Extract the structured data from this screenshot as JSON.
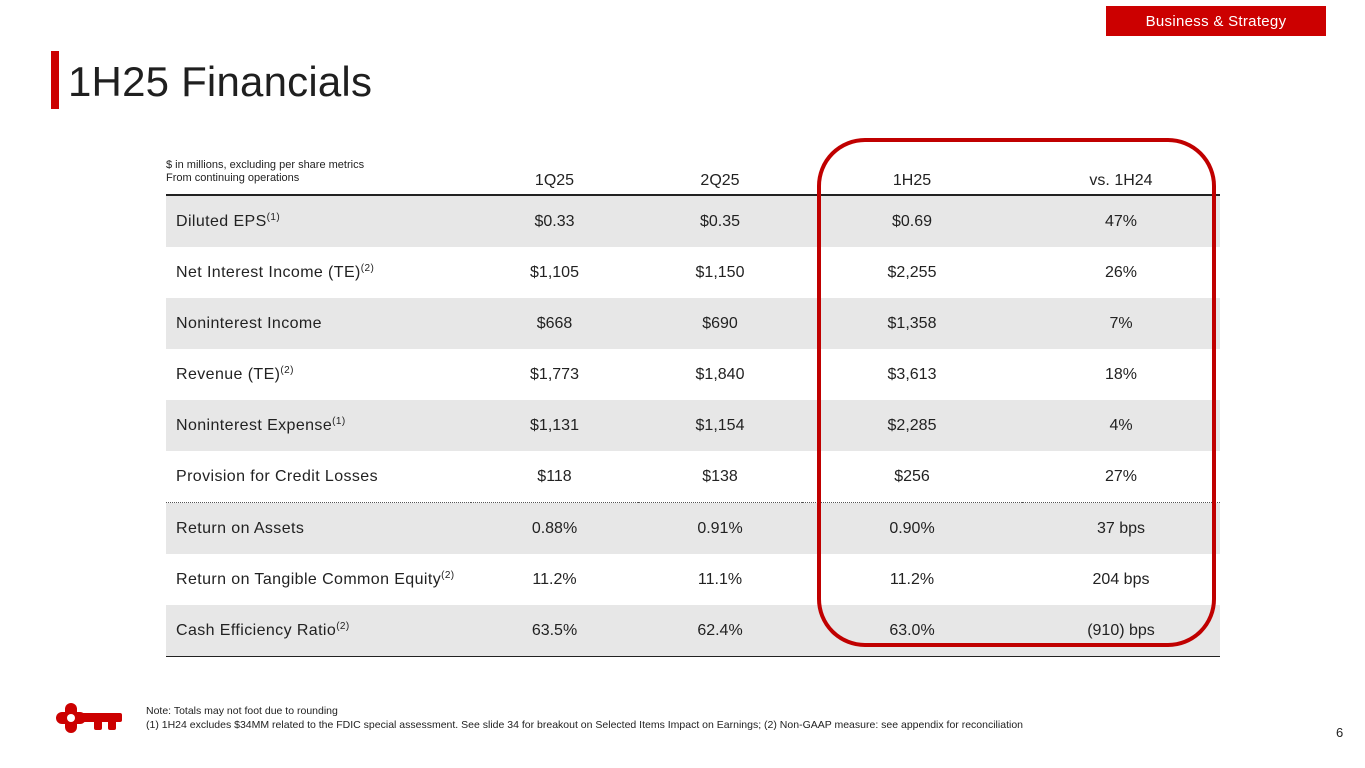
{
  "badge": "Business & Strategy",
  "title": "1H25 Financials",
  "table": {
    "note_line1": "$ in millions, excluding per share metrics",
    "note_line2": "From continuing operations",
    "columns": [
      "1Q25",
      "2Q25",
      "1H25",
      "vs. 1H24"
    ],
    "rows": [
      {
        "label": "Diluted EPS",
        "sup": "(1)",
        "values": [
          "$0.33",
          "$0.35",
          "$0.69",
          "47%"
        ]
      },
      {
        "label": "Net Interest Income (TE)",
        "sup": "(2)",
        "values": [
          "$1,105",
          "$1,150",
          "$2,255",
          "26%"
        ]
      },
      {
        "label": "Noninterest Income",
        "sup": "",
        "values": [
          "$668",
          "$690",
          "$1,358",
          "7%"
        ]
      },
      {
        "label": "Revenue (TE)",
        "sup": "(2)",
        "values": [
          "$1,773",
          "$1,840",
          "$3,613",
          "18%"
        ]
      },
      {
        "label": "Noninterest Expense",
        "sup": "(1)",
        "values": [
          "$1,131",
          "$1,154",
          "$2,285",
          "4%"
        ]
      },
      {
        "label": "Provision for Credit Losses",
        "sup": "",
        "values": [
          "$118",
          "$138",
          "$256",
          "27%"
        ]
      },
      {
        "label": "Return on Assets",
        "sup": "",
        "values": [
          "0.88%",
          "0.91%",
          "0.90%",
          "37 bps"
        ]
      },
      {
        "label": "Return on Tangible Common Equity",
        "sup": "(2)",
        "values": [
          "11.2%",
          "11.1%",
          "11.2%",
          "204 bps"
        ]
      },
      {
        "label": "Cash Efficiency Ratio",
        "sup": "(2)",
        "values": [
          "63.5%",
          "62.4%",
          "63.0%",
          "(910) bps"
        ]
      }
    ]
  },
  "footnotes": {
    "line1": "Note: Totals may not foot due to rounding",
    "line2": "(1) 1H24 excludes $34MM related to the FDIC special assessment. See slide 34 for breakout on Selected Items Impact on Earnings; (2) Non-GAAP measure: see appendix for reconciliation"
  },
  "page_number": "6",
  "logo_icon": "key-icon",
  "colors": {
    "accent": "#cc0000",
    "highlight_ring": "#c00000",
    "row_shade": "#e7e7e7"
  }
}
